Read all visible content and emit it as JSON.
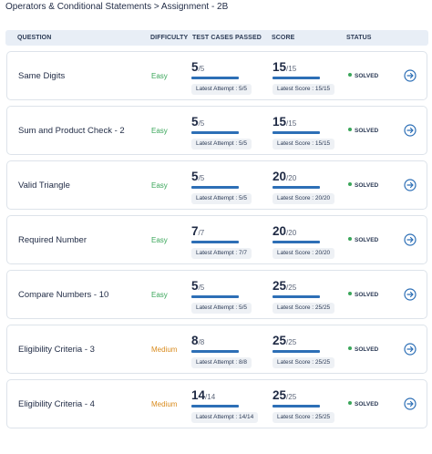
{
  "breadcrumb": "Operators & Conditional Statements > Assignment - 2B",
  "table": {
    "headers": {
      "question": "QUESTION",
      "difficulty": "DIFFICULTY",
      "test_cases": "TEST CASES PASSED",
      "score": "SCORE",
      "status": "STATUS"
    },
    "rows": [
      {
        "question": "Same Digits",
        "difficulty": "Easy",
        "tc_passed": "5",
        "tc_total": "/5",
        "latest_attempt": "Latest Attempt : 5/5",
        "score": "15",
        "score_total": "/15",
        "latest_score": "Latest Score : 15/15",
        "status": "SOLVED"
      },
      {
        "question": "Sum and Product Check - 2",
        "difficulty": "Easy",
        "tc_passed": "5",
        "tc_total": "/5",
        "latest_attempt": "Latest Attempt : 5/5",
        "score": "15",
        "score_total": "/15",
        "latest_score": "Latest Score : 15/15",
        "status": "SOLVED"
      },
      {
        "question": "Valid Triangle",
        "difficulty": "Easy",
        "tc_passed": "5",
        "tc_total": "/5",
        "latest_attempt": "Latest Attempt : 5/5",
        "score": "20",
        "score_total": "/20",
        "latest_score": "Latest Score : 20/20",
        "status": "SOLVED"
      },
      {
        "question": "Required Number",
        "difficulty": "Easy",
        "tc_passed": "7",
        "tc_total": "/7",
        "latest_attempt": "Latest Attempt : 7/7",
        "score": "20",
        "score_total": "/20",
        "latest_score": "Latest Score : 20/20",
        "status": "SOLVED"
      },
      {
        "question": "Compare Numbers - 10",
        "difficulty": "Easy",
        "tc_passed": "5",
        "tc_total": "/5",
        "latest_attempt": "Latest Attempt : 5/5",
        "score": "25",
        "score_total": "/25",
        "latest_score": "Latest Score : 25/25",
        "status": "SOLVED"
      },
      {
        "question": "Eligibility Criteria - 3",
        "difficulty": "Medium",
        "tc_passed": "8",
        "tc_total": "/8",
        "latest_attempt": "Latest Attempt : 8/8",
        "score": "25",
        "score_total": "/25",
        "latest_score": "Latest Score : 25/25",
        "status": "SOLVED"
      },
      {
        "question": "Eligibility Criteria - 4",
        "difficulty": "Medium",
        "tc_passed": "14",
        "tc_total": "/14",
        "latest_attempt": "Latest Attempt : 14/14",
        "score": "25",
        "score_total": "/25",
        "latest_score": "Latest Score : 25/25",
        "status": "SOLVED"
      }
    ]
  },
  "colors": {
    "easy": "#3aa65a",
    "medium": "#d98c1f",
    "progress": "#2d6fb6",
    "solved_dot": "#3aa65a",
    "action_icon": "#2d6fb6"
  },
  "icons": {
    "status": "green-dot-icon",
    "action": "arrow-right-circle-icon"
  }
}
